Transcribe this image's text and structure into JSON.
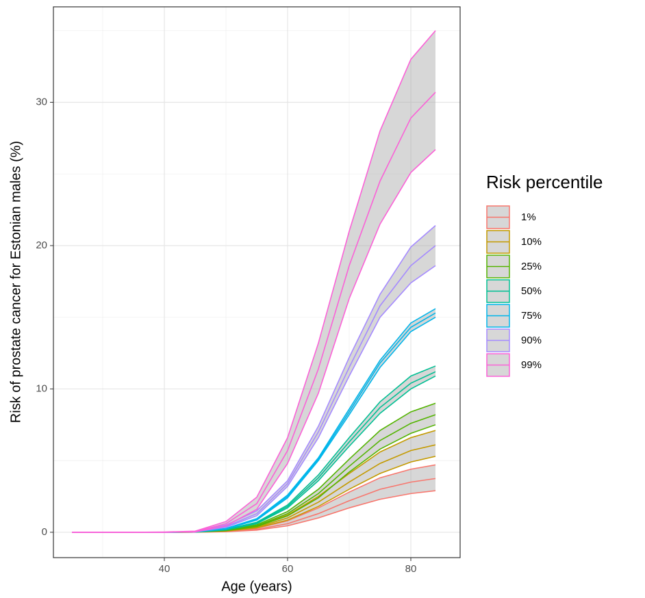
{
  "chart_data": {
    "type": "ribbon-line",
    "x_label": "Age (years)",
    "y_label": "Risk of prostate cancer for Estonian males (%)",
    "legend_title": "Risk percentile",
    "x": [
      25,
      30,
      35,
      40,
      45,
      50,
      55,
      60,
      65,
      70,
      75,
      80,
      84
    ],
    "xlim": [
      22,
      88
    ],
    "xticks": [
      40,
      60,
      80
    ],
    "x_minor_ticks": [
      30,
      50,
      70
    ],
    "ylim": [
      -1.77,
      36.66
    ],
    "yticks": [
      0,
      10,
      20,
      30
    ],
    "y_minor_ticks": [
      5,
      15,
      25,
      35
    ],
    "grid": true,
    "ribbon_color": "#a6a6a6",
    "series": [
      {
        "name": "1%",
        "color": "#F8766D",
        "values": [
          0,
          0,
          0,
          0,
          0.005,
          0.06,
          0.2,
          0.6,
          1.3,
          2.2,
          3.0,
          3.5,
          3.75
        ],
        "upper": [
          0,
          0,
          0,
          0,
          0.01,
          0.08,
          0.28,
          0.8,
          1.7,
          2.8,
          3.8,
          4.4,
          4.7
        ],
        "lower": [
          0,
          0,
          0,
          0,
          0.003,
          0.04,
          0.15,
          0.45,
          1.0,
          1.7,
          2.3,
          2.7,
          2.9
        ]
      },
      {
        "name": "10%",
        "color": "#C49A00",
        "values": [
          0,
          0,
          0,
          0,
          0.01,
          0.1,
          0.35,
          1.0,
          2.1,
          3.5,
          4.8,
          5.7,
          6.1
        ],
        "upper": [
          0,
          0,
          0,
          0,
          0.012,
          0.12,
          0.42,
          1.2,
          2.5,
          4.1,
          5.6,
          6.6,
          7.1
        ],
        "lower": [
          0,
          0,
          0,
          0,
          0.008,
          0.08,
          0.3,
          0.85,
          1.8,
          3.0,
          4.1,
          4.9,
          5.3
        ]
      },
      {
        "name": "25%",
        "color": "#53B400",
        "values": [
          0,
          0,
          0,
          0,
          0.01,
          0.13,
          0.45,
          1.3,
          2.7,
          4.6,
          6.4,
          7.6,
          8.2
        ],
        "upper": [
          0,
          0,
          0,
          0,
          0.012,
          0.15,
          0.52,
          1.45,
          3.0,
          5.1,
          7.1,
          8.4,
          9.0
        ],
        "lower": [
          0,
          0,
          0,
          0,
          0.008,
          0.11,
          0.4,
          1.15,
          2.4,
          4.2,
          5.8,
          6.9,
          7.5
        ]
      },
      {
        "name": "50%",
        "color": "#00C094",
        "values": [
          0,
          0,
          0,
          0,
          0.015,
          0.18,
          0.65,
          1.8,
          3.8,
          6.3,
          8.7,
          10.4,
          11.2
        ],
        "upper": [
          0,
          0,
          0,
          0,
          0.018,
          0.2,
          0.7,
          1.9,
          4.0,
          6.6,
          9.1,
          10.9,
          11.6
        ],
        "lower": [
          0,
          0,
          0,
          0,
          0.012,
          0.16,
          0.6,
          1.7,
          3.6,
          6.0,
          8.3,
          10.0,
          10.9
        ]
      },
      {
        "name": "75%",
        "color": "#00B6EB",
        "values": [
          0,
          0,
          0,
          0,
          0.02,
          0.25,
          0.9,
          2.5,
          5.1,
          8.4,
          11.8,
          14.3,
          15.3
        ],
        "upper": [
          0,
          0,
          0,
          0,
          0.022,
          0.27,
          0.95,
          2.6,
          5.2,
          8.6,
          12.0,
          14.6,
          15.6
        ],
        "lower": [
          0,
          0,
          0,
          0,
          0.018,
          0.23,
          0.85,
          2.4,
          5.0,
          8.2,
          11.5,
          14.0,
          15.0
        ]
      },
      {
        "name": "90%",
        "color": "#A58AFF",
        "values": [
          0,
          0,
          0,
          0,
          0.03,
          0.4,
          1.3,
          3.4,
          7.0,
          11.5,
          15.8,
          18.6,
          20.0
        ],
        "upper": [
          0,
          0,
          0,
          0,
          0.04,
          0.5,
          1.5,
          3.6,
          7.4,
          12.2,
          16.6,
          19.9,
          21.4
        ],
        "lower": [
          0,
          0,
          0,
          0,
          0.02,
          0.35,
          1.15,
          3.2,
          6.6,
          10.9,
          15.0,
          17.4,
          18.6
        ]
      },
      {
        "name": "99%",
        "color": "#FB61D7",
        "values": [
          0,
          0,
          0,
          0,
          0.05,
          0.6,
          2.0,
          5.7,
          11.4,
          18.6,
          24.5,
          28.9,
          30.7
        ],
        "upper": [
          0,
          0,
          0,
          0.02,
          0.08,
          0.75,
          2.45,
          6.6,
          13.2,
          21.0,
          28.0,
          33.0,
          35.0
        ],
        "lower": [
          0,
          0,
          0,
          0,
          0.03,
          0.45,
          1.6,
          4.8,
          9.7,
          16.3,
          21.5,
          25.1,
          26.7
        ]
      }
    ]
  }
}
